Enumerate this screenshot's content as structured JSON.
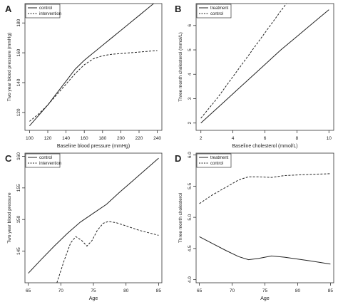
{
  "chart_data": [
    {
      "panel": "A",
      "type": "line",
      "xlabel": "Baseline blood pressure (mmHg)",
      "ylabel": "Two year blood pressure (mmHg)",
      "xlim": [
        95,
        245
      ],
      "ylim": [
        108,
        193
      ],
      "xticks": [
        100,
        120,
        140,
        160,
        180,
        200,
        220,
        240
      ],
      "yticks": [
        120,
        140,
        160,
        180
      ],
      "legend_position": "top-left",
      "series": [
        {
          "name": "control",
          "dash": "solid",
          "x": [
            100,
            110,
            120,
            130,
            140,
            150,
            160,
            170,
            180,
            190,
            200,
            210,
            220,
            230,
            240
          ],
          "y": [
            111,
            118,
            125,
            133,
            141,
            149,
            155,
            160,
            165,
            170,
            175,
            180,
            185,
            190,
            195
          ]
        },
        {
          "name": "intervention",
          "dash": "dashed",
          "x": [
            100,
            110,
            120,
            130,
            140,
            150,
            160,
            170,
            180,
            190,
            200,
            210,
            220,
            230,
            240
          ],
          "y": [
            114,
            119,
            125,
            132,
            139,
            146,
            152,
            156,
            158,
            159,
            159.5,
            160,
            160.5,
            161,
            161.5
          ]
        }
      ]
    },
    {
      "panel": "B",
      "type": "line",
      "xlabel": "Baseline cholesterol (mmol/L)",
      "ylabel": "Three month cholesterol (mmol/L)",
      "xlim": [
        1.7,
        10.3
      ],
      "ylim": [
        1.7,
        6.9
      ],
      "xticks": [
        2,
        4,
        6,
        8,
        10
      ],
      "yticks": [
        2,
        3,
        4,
        5,
        6
      ],
      "legend_position": "top-left",
      "series": [
        {
          "name": "treatment",
          "dash": "solid",
          "x": [
            2,
            3,
            4,
            5,
            6,
            7,
            8,
            9,
            10
          ],
          "y": [
            2.0,
            2.6,
            3.2,
            3.8,
            4.4,
            5.0,
            5.55,
            6.1,
            6.65
          ]
        },
        {
          "name": "control",
          "dash": "dashed",
          "x": [
            2,
            3,
            4,
            5,
            6,
            7,
            7.8
          ],
          "y": [
            2.2,
            3.0,
            3.9,
            4.8,
            5.7,
            6.6,
            7.3
          ]
        }
      ]
    },
    {
      "panel": "C",
      "type": "line",
      "xlabel": "Age",
      "ylabel": "Two year blood pressure",
      "xlim": [
        64.5,
        85.5
      ],
      "ylim": [
        140,
        160.5
      ],
      "xticks": [
        65,
        70,
        75,
        80,
        85
      ],
      "yticks": [
        145,
        150,
        155,
        160
      ],
      "legend_position": "top-left",
      "series": [
        {
          "name": "control",
          "dash": "solid",
          "x": [
            65,
            67,
            69,
            71,
            73,
            75,
            77,
            79,
            81,
            83,
            85
          ],
          "y": [
            141.5,
            143.7,
            145.8,
            147.8,
            149.6,
            151.0,
            152.4,
            154.3,
            156.1,
            157.9,
            159.7
          ]
        },
        {
          "name": "intervention",
          "dash": "dashed",
          "x": [
            69.4,
            70.5,
            71.5,
            72.3,
            73.2,
            74.0,
            74.8,
            75.6,
            76.5,
            77.3,
            78.5,
            80,
            82,
            85
          ],
          "y": [
            140,
            143.5,
            146.3,
            147.3,
            146.7,
            145.8,
            146.7,
            148.3,
            149.4,
            149.7,
            149.5,
            149,
            148.3,
            147.5
          ]
        }
      ]
    },
    {
      "panel": "D",
      "type": "line",
      "xlabel": "Age",
      "ylabel": "Three month cholesterol",
      "xlim": [
        64.5,
        85.5
      ],
      "ylim": [
        3.95,
        6.03
      ],
      "xticks": [
        65,
        70,
        75,
        80,
        85
      ],
      "yticks": [
        4.0,
        4.5,
        5.0,
        5.5,
        6.0
      ],
      "legend_position": "top-left",
      "series": [
        {
          "name": "treatment",
          "dash": "solid",
          "x": [
            65,
            67,
            69,
            71,
            72.5,
            74,
            76,
            78,
            80,
            82,
            85
          ],
          "y": [
            4.69,
            4.58,
            4.47,
            4.37,
            4.32,
            4.34,
            4.38,
            4.36,
            4.33,
            4.3,
            4.25
          ]
        },
        {
          "name": "control",
          "dash": "dashed",
          "x": [
            65,
            67,
            69,
            71,
            72.5,
            74,
            76,
            78,
            80,
            82,
            85
          ],
          "y": [
            5.22,
            5.36,
            5.48,
            5.6,
            5.65,
            5.65,
            5.64,
            5.67,
            5.68,
            5.69,
            5.7
          ]
        }
      ]
    }
  ]
}
